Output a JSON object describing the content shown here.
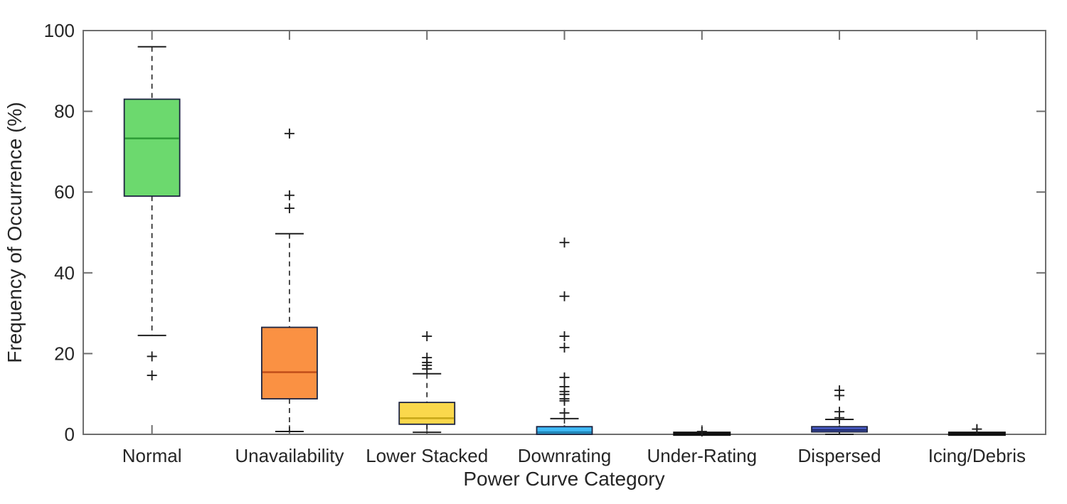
{
  "chart_data": {
    "type": "boxplot",
    "title": "",
    "xlabel": "Power Curve Category",
    "ylabel": "Frequency of Occurrence (%)",
    "ylim": [
      0,
      100
    ],
    "yticks": [
      0,
      20,
      40,
      60,
      80,
      100
    ],
    "grid": false,
    "legend": "none",
    "colors": {
      "axis": "#6e6e6e",
      "text": "#262626",
      "marker": "#1f1f1f",
      "box_edge": "#1c2340",
      "background": "#ffffff"
    },
    "categories": [
      "Normal",
      "Unavailability",
      "Lower Stacked",
      "Downrating",
      "Under-Rating",
      "Dispersed",
      "Icing/Debris"
    ],
    "series": [
      {
        "name": "Normal",
        "fill": "#6CD96E",
        "median_color": "#2F9E38",
        "collapsed": false,
        "whisker_low": 24.5,
        "q1": 59,
        "median": 73.3,
        "q3": 83,
        "whisker_high": 96,
        "outliers": [
          19.3,
          14.6
        ]
      },
      {
        "name": "Unavailability",
        "fill": "#FA9143",
        "median_color": "#C2511B",
        "collapsed": false,
        "whisker_low": 0.7,
        "q1": 8.8,
        "median": 15.4,
        "q3": 26.5,
        "whisker_high": 49.7,
        "outliers": [
          74.5,
          59.2,
          56.0
        ]
      },
      {
        "name": "Lower Stacked",
        "fill": "#FAD84C",
        "median_color": "#C9A91A",
        "collapsed": false,
        "whisker_low": 0.5,
        "q1": 2.5,
        "median": 4.0,
        "q3": 7.9,
        "whisker_high": 15.0,
        "outliers": [
          24.3,
          19.0,
          17.8,
          17.1,
          16.2
        ]
      },
      {
        "name": "Downrating",
        "fill": "#3FB9F5",
        "median_color": "#1E82B4",
        "collapsed": false,
        "whisker_low": 0,
        "q1": 0,
        "median": 0.5,
        "q3": 1.9,
        "whisker_high": 3.9,
        "outliers": [
          47.5,
          34.2,
          24.3,
          21.5,
          14.1,
          11.8,
          10.6,
          9.9,
          8.8,
          8.3,
          5.3
        ]
      },
      {
        "name": "Under-Rating",
        "fill": "#111111",
        "median_color": "#111111",
        "collapsed": true,
        "whisker_low": 0,
        "q1": 0,
        "median": 0.15,
        "q3": 0.3,
        "whisker_high": 0.3,
        "outliers": [
          0.7
        ]
      },
      {
        "name": "Dispersed",
        "fill": "#4B5FCD",
        "median_color": "#232E6E",
        "collapsed": false,
        "whisker_low": 0,
        "q1": 0.6,
        "median": 1.1,
        "q3": 1.9,
        "whisker_high": 3.7,
        "outliers": [
          10.9,
          9.6,
          5.6,
          4.1
        ]
      },
      {
        "name": "Icing/Debris",
        "fill": "#111111",
        "median_color": "#111111",
        "collapsed": true,
        "whisker_low": 0,
        "q1": 0,
        "median": 0.15,
        "q3": 0.3,
        "whisker_high": 0.3,
        "outliers": [
          1.3
        ]
      }
    ]
  }
}
